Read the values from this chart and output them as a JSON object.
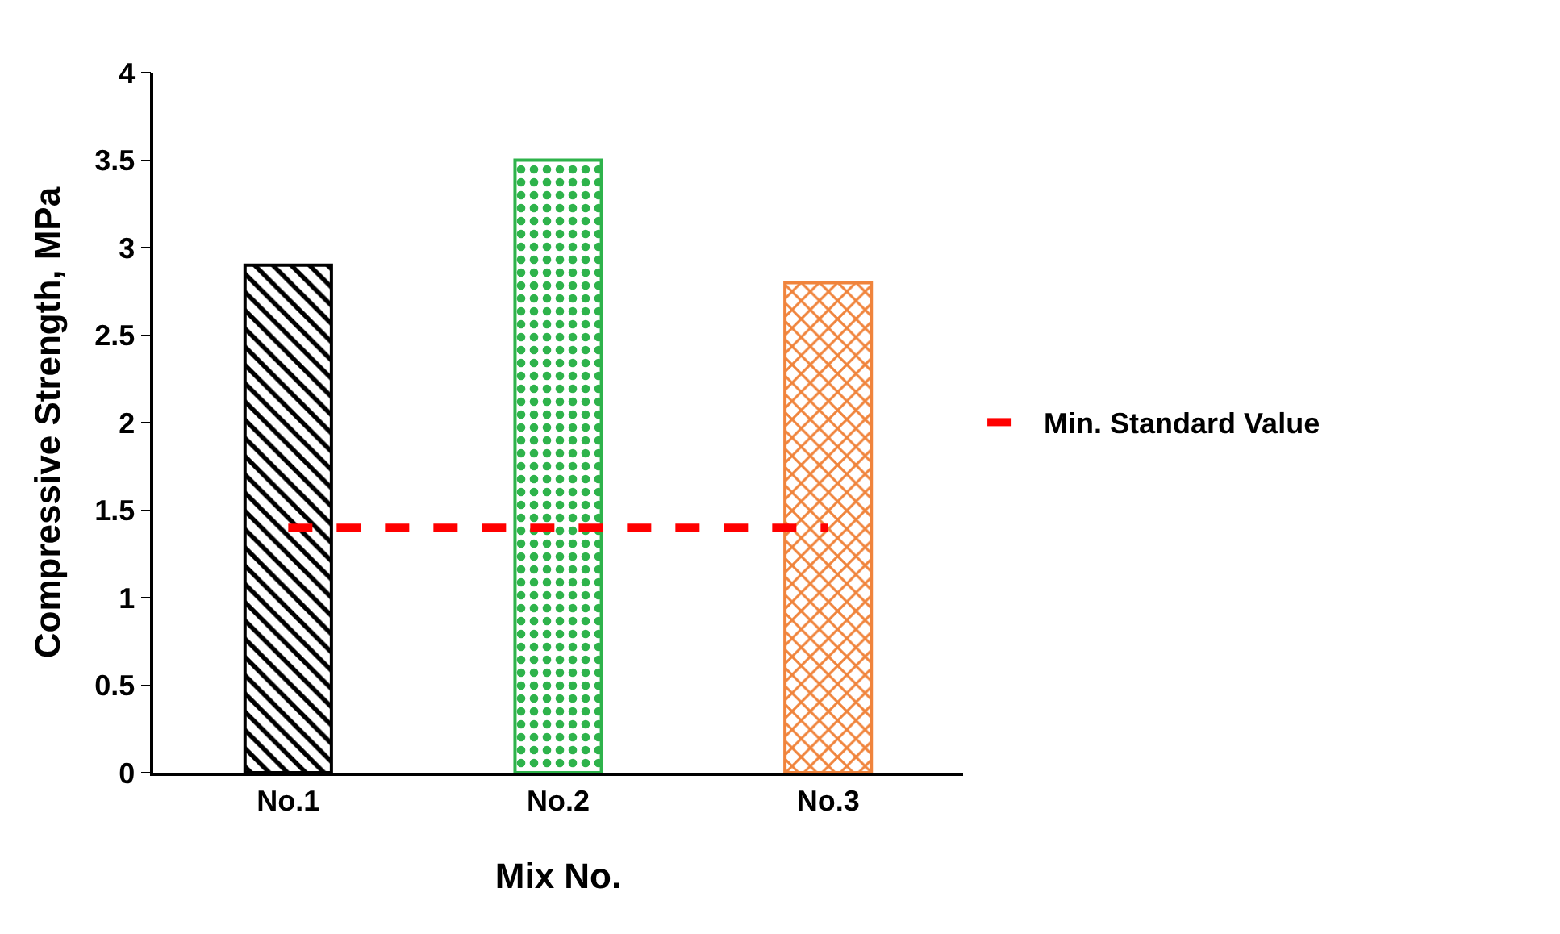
{
  "chart_data": {
    "type": "bar",
    "xlabel": "Mix No.",
    "ylabel": "Compressive Strength, MPa",
    "categories": [
      "No.1",
      "No.2",
      "No.3"
    ],
    "series": [
      {
        "values": [
          2.9,
          3.5,
          2.8
        ],
        "colors": [
          "#000000",
          "#2eb34b",
          "#f0843c"
        ]
      },
      {
        "type": "line",
        "name": "Min. Standard Value",
        "color": "#ff0000",
        "values": [
          1.4,
          1.4,
          1.4
        ],
        "line_style": "dashed",
        "marker": "none"
      }
    ],
    "ylim": [
      0,
      4
    ],
    "yticks": [
      0,
      0.5,
      1,
      1.5,
      2,
      2.5,
      3,
      3.5,
      4
    ],
    "legend": "right"
  }
}
